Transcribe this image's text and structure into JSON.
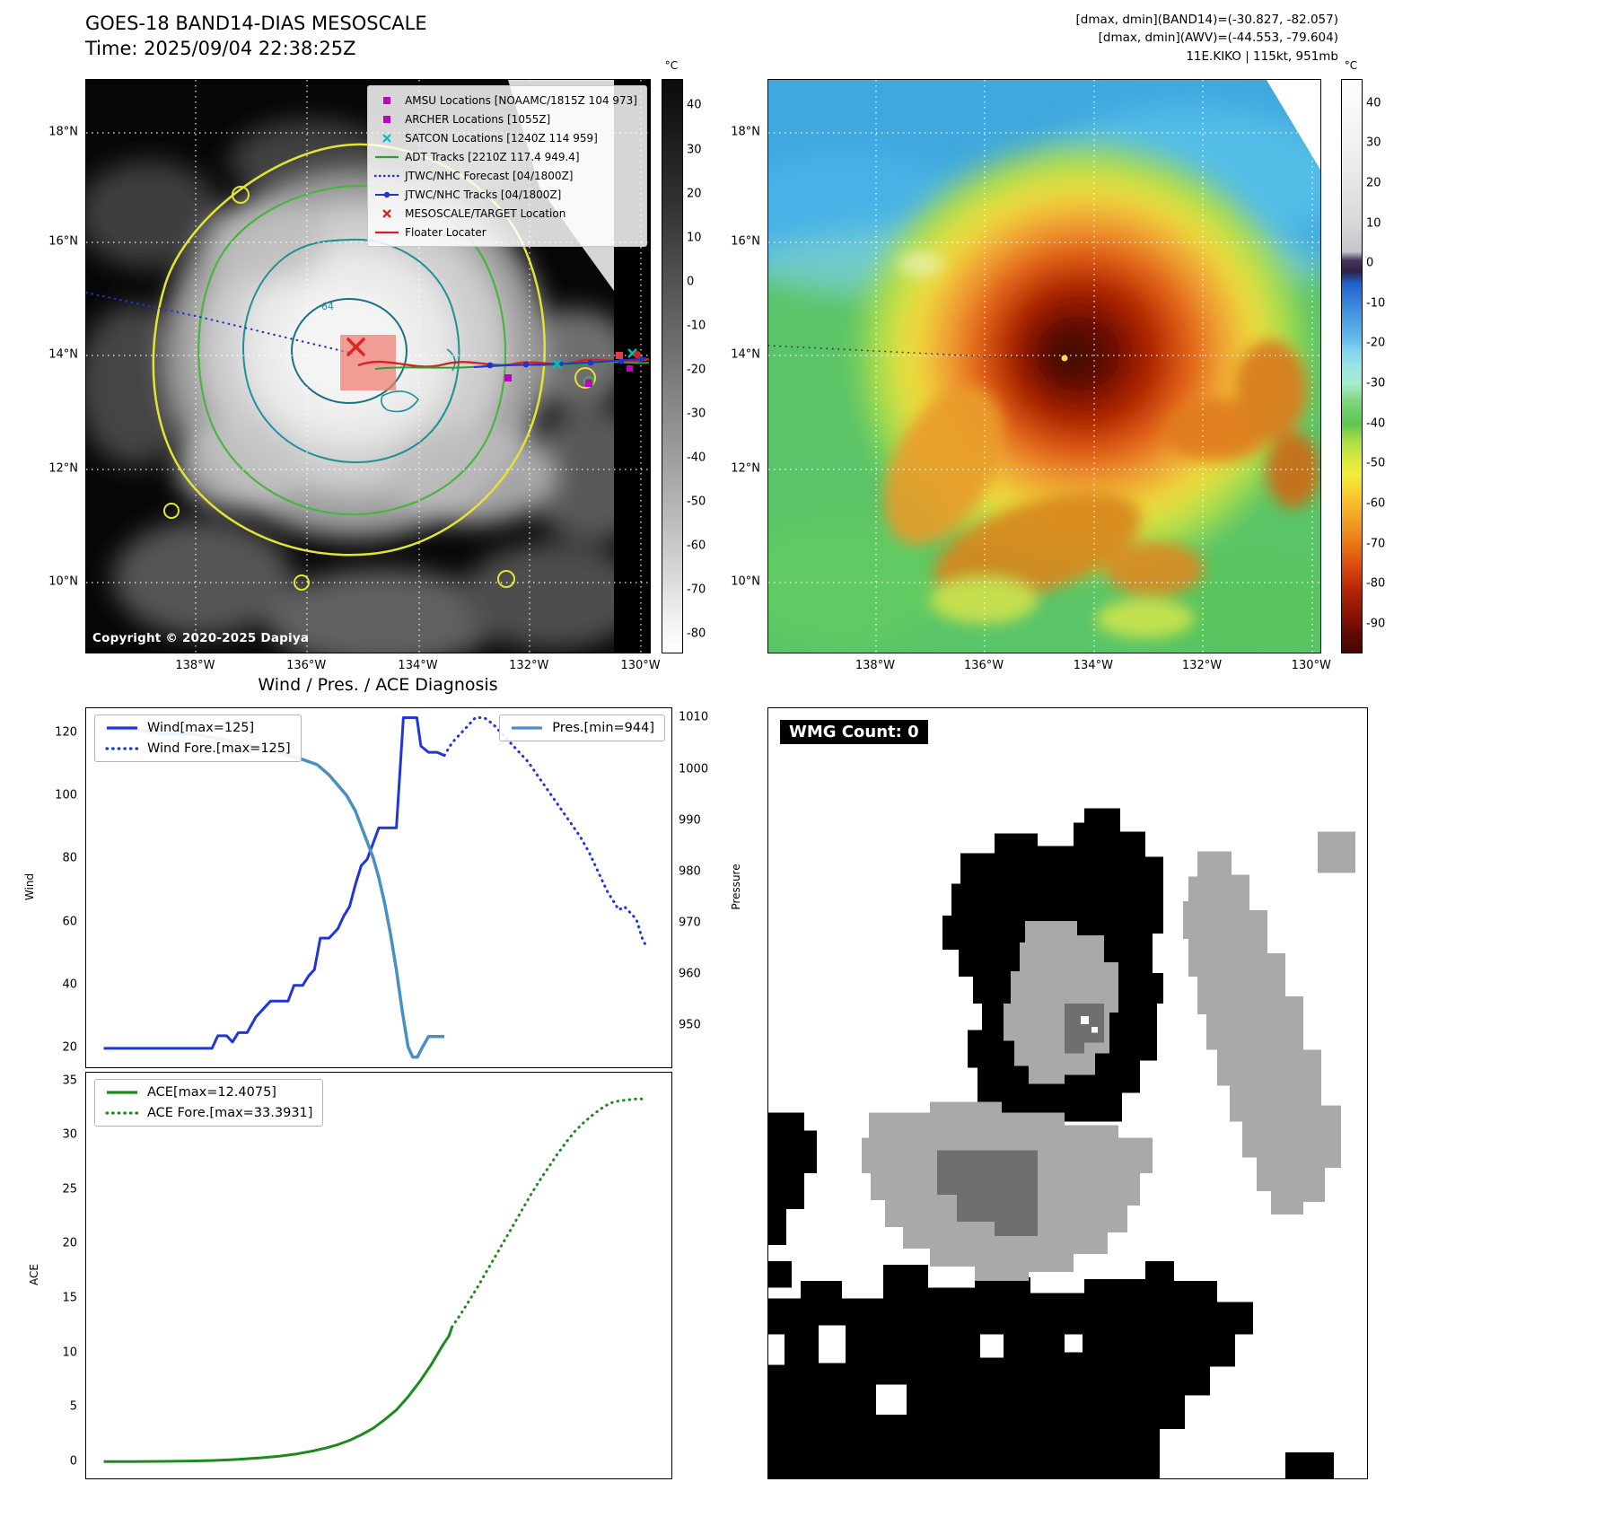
{
  "panel1": {
    "title": "GOES-18 BAND14-DIAS MESOSCALE",
    "subtitle": "Time: 2025/09/04 22:38:25Z",
    "copyright": "Copyright © 2020-2025 Dapiya",
    "contour_label": "-64",
    "legend": [
      {
        "marker": "square-magenta",
        "label": "AMSU Locations [NOAAMC/1815Z 104 973]"
      },
      {
        "marker": "square-magenta",
        "label": "ARCHER Locations [1055Z]"
      },
      {
        "marker": "x-cyan",
        "label": "SATCON Locations [1240Z 114 959]"
      },
      {
        "marker": "line-green",
        "label": "ADT Tracks [2210Z 117.4 949.4]"
      },
      {
        "marker": "line-dotted-blue",
        "label": "JTWC/NHC Forecast [04/1800Z]"
      },
      {
        "marker": "line-dot-blue",
        "label": "JTWC/NHC Tracks [04/1800Z]"
      },
      {
        "marker": "x-red",
        "label": "MESOSCALE/TARGET Location"
      },
      {
        "marker": "line-red",
        "label": "Floater Locater"
      }
    ],
    "axis": {
      "lat": [
        "18°N",
        "16°N",
        "14°N",
        "12°N",
        "10°N"
      ],
      "lon": [
        "138°W",
        "136°W",
        "134°W",
        "132°W",
        "130°W"
      ]
    },
    "colorbar": {
      "unit": "°C",
      "ticks": [
        40,
        30,
        20,
        10,
        0,
        -10,
        -20,
        -30,
        -40,
        -50,
        -60,
        -70,
        -80
      ]
    }
  },
  "panel2": {
    "header_lines": [
      "[dmax, dmin](BAND14)=(-30.827, -82.057)",
      "[dmax, dmin](AWV)=(-44.553, -79.604)",
      "11E.KIKO | 115kt, 951mb"
    ],
    "axis": {
      "lat": [
        "18°N",
        "16°N",
        "14°N",
        "12°N",
        "10°N"
      ],
      "lon": [
        "138°W",
        "136°W",
        "134°W",
        "132°W",
        "130°W"
      ]
    },
    "colorbar": {
      "unit": "°C",
      "ticks": [
        40,
        30,
        20,
        10,
        0,
        -10,
        -20,
        -30,
        -40,
        -50,
        -60,
        -70,
        -80,
        -90
      ]
    }
  },
  "panel4": {
    "wmg_label": "WMG Count: 0"
  },
  "chart_data": [
    {
      "type": "line",
      "title": "Wind / Pres. / ACE Diagnosis",
      "ylabel_left": "Wind",
      "ylabel_right": "Pressure",
      "y_ticks_left": [
        20,
        40,
        60,
        80,
        100,
        120
      ],
      "y_ticks_right": [
        950,
        960,
        970,
        980,
        990,
        1000,
        1010
      ],
      "ylim_left": [
        14,
        128
      ],
      "ylim_right": [
        942,
        1012
      ],
      "xlim": [
        0,
        1
      ],
      "grid": false,
      "series": [
        {
          "name": "Wind[max=125]",
          "axis": "left",
          "style": "solid",
          "color": "#2036d9",
          "width": 3,
          "x": [
            0.03,
            0.07,
            0.11,
            0.15,
            0.19,
            0.215,
            0.225,
            0.24,
            0.25,
            0.26,
            0.275,
            0.29,
            0.3,
            0.315,
            0.33,
            0.345,
            0.355,
            0.37,
            0.38,
            0.39,
            0.4,
            0.415,
            0.43,
            0.44,
            0.45,
            0.46,
            0.47,
            0.48,
            0.49,
            0.5,
            0.515,
            0.53,
            0.542,
            0.555,
            0.565,
            0.572,
            0.585,
            0.6,
            0.612
          ],
          "y": [
            20,
            20,
            20,
            20,
            20,
            20,
            24,
            24,
            22,
            25,
            25,
            30,
            32,
            35,
            35,
            35,
            40,
            40,
            43,
            45,
            55,
            55,
            58,
            62,
            65,
            72,
            78,
            80,
            85,
            90,
            90,
            90,
            125,
            125,
            125,
            116,
            114,
            114,
            113
          ]
        },
        {
          "name": "Wind Fore.[max=125]",
          "axis": "left",
          "style": "dotted",
          "color": "#2036d9",
          "width": 3,
          "x": [
            0.612,
            0.625,
            0.64,
            0.655,
            0.665,
            0.68,
            0.695,
            0.71,
            0.725,
            0.74,
            0.755,
            0.77,
            0.785,
            0.8,
            0.815,
            0.83,
            0.845,
            0.86,
            0.87,
            0.88,
            0.89,
            0.9,
            0.91,
            0.92,
            0.93,
            0.94,
            0.95,
            0.958
          ],
          "y": [
            113,
            117,
            120,
            123,
            125,
            125,
            123,
            120,
            117,
            114,
            111,
            107,
            103,
            99,
            95,
            91,
            87,
            82,
            78,
            74,
            70,
            67,
            64,
            65,
            63,
            61,
            55,
            52
          ]
        },
        {
          "name": "Pres.[min=944]",
          "axis": "right",
          "style": "solid",
          "color": "#4a8fc2",
          "width": 3.5,
          "x": [
            0.03,
            0.08,
            0.13,
            0.18,
            0.23,
            0.27,
            0.31,
            0.34,
            0.37,
            0.395,
            0.415,
            0.43,
            0.445,
            0.46,
            0.47,
            0.48,
            0.49,
            0.5,
            0.51,
            0.52,
            0.53,
            0.54,
            0.55,
            0.558,
            0.566,
            0.575,
            0.585,
            0.6,
            0.612
          ],
          "y": [
            1008,
            1008,
            1007,
            1007,
            1006,
            1005,
            1004,
            1003,
            1002,
            1001,
            999,
            997,
            995,
            992,
            989,
            986,
            983,
            979,
            974,
            968,
            961,
            953,
            946,
            944,
            944,
            946,
            948,
            948,
            948
          ]
        }
      ]
    },
    {
      "type": "line",
      "ylabel_left": "ACE",
      "y_ticks_left": [
        0,
        5,
        10,
        15,
        20,
        25,
        30,
        35
      ],
      "ylim_left": [
        -1.5,
        35.8
      ],
      "xlim": [
        0,
        1
      ],
      "grid": false,
      "series": [
        {
          "name": "ACE[max=12.4075]",
          "style": "solid",
          "color": "#1e8a1e",
          "width": 3,
          "x": [
            0.03,
            0.08,
            0.13,
            0.18,
            0.22,
            0.26,
            0.3,
            0.33,
            0.36,
            0.39,
            0.41,
            0.43,
            0.45,
            0.47,
            0.49,
            0.51,
            0.53,
            0.55,
            0.57,
            0.59,
            0.6,
            0.61,
            0.62,
            0.625
          ],
          "y": [
            0.05,
            0.05,
            0.07,
            0.1,
            0.15,
            0.25,
            0.4,
            0.55,
            0.75,
            1.05,
            1.3,
            1.6,
            2.0,
            2.5,
            3.1,
            3.9,
            4.8,
            6.0,
            7.4,
            9.0,
            9.9,
            10.8,
            11.6,
            12.41
          ]
        },
        {
          "name": "ACE Fore.[max=33.3931]",
          "style": "dotted",
          "color": "#1e8a1e",
          "width": 3,
          "x": [
            0.625,
            0.64,
            0.655,
            0.67,
            0.685,
            0.7,
            0.715,
            0.73,
            0.745,
            0.76,
            0.775,
            0.79,
            0.805,
            0.82,
            0.835,
            0.85,
            0.865,
            0.88,
            0.895,
            0.91,
            0.925,
            0.94,
            0.955
          ],
          "y": [
            12.41,
            13.6,
            14.9,
            16.2,
            17.6,
            19.0,
            20.4,
            21.8,
            23.2,
            24.6,
            25.9,
            27.1,
            28.3,
            29.4,
            30.4,
            31.2,
            31.9,
            32.5,
            33.0,
            33.2,
            33.3,
            33.39,
            33.39
          ]
        }
      ]
    }
  ]
}
